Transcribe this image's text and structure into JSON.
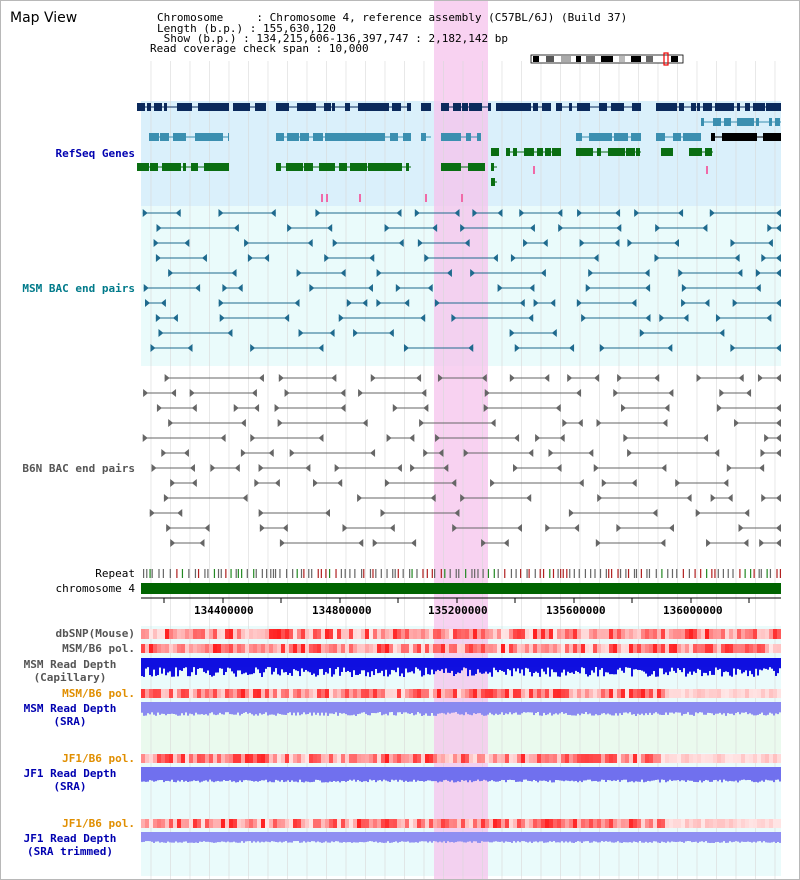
{
  "header": {
    "title": "Map View",
    "chromosome_label": "Chromosome    ",
    "chromosome_value": "Chromosome 4, reference assembly (C57BL/6J) (Build 37)",
    "length_label": "Length (b.p.)",
    "length_value": "155,630,120",
    "show_label": " Show (b.p.)",
    "show_value": "134,215,606-136,397,747 : 2,182,142 bp",
    "span_label": "Read coverage check span",
    "span_value": "10,000"
  },
  "tracks": {
    "refseq": "RefSeq Genes",
    "msm_bac": "MSM BAC end pairs",
    "b6n_bac": "B6N BAC end pairs",
    "repeat": "Repeat",
    "chromosome": "chromosome 4",
    "dbsnp": "dbSNP(Mouse)",
    "msm_b6_pol_1": "MSM/B6 pol.",
    "msm_depth_cap_1": "MSM Read Depth",
    "msm_depth_cap_2": "(Capillary)",
    "msm_b6_pol_2": "MSM/B6 pol.",
    "msm_depth_sra_1": "MSM Read Depth",
    "msm_depth_sra_2": "(SRA)",
    "jf1_b6_pol_1": "JF1/B6 pol.",
    "jf1_depth_sra_1": "JF1 Read Depth",
    "jf1_depth_sra_2": "(SRA)",
    "jf1_b6_pol_2": "JF1/B6 pol.",
    "jf1_depth_trim_1": "JF1 Read Depth",
    "jf1_depth_trim_2": "(SRA trimmed)"
  },
  "axis": {
    "ticks": [
      "134400000",
      "134800000",
      "135200000",
      "135600000",
      "136000000"
    ]
  },
  "colors": {
    "refseq_dark": "#0b2a5c",
    "refseq_mid": "#3b8fb0",
    "refseq_green": "#0a6e12",
    "msm_bac": "#1f6a8e",
    "b6n_bac": "#666666",
    "highlight": "#f6c3ec",
    "label_blue": "#0000b0",
    "label_teal": "#007a8a",
    "label_gray": "#555555",
    "label_orange": "#e08e00"
  }
}
